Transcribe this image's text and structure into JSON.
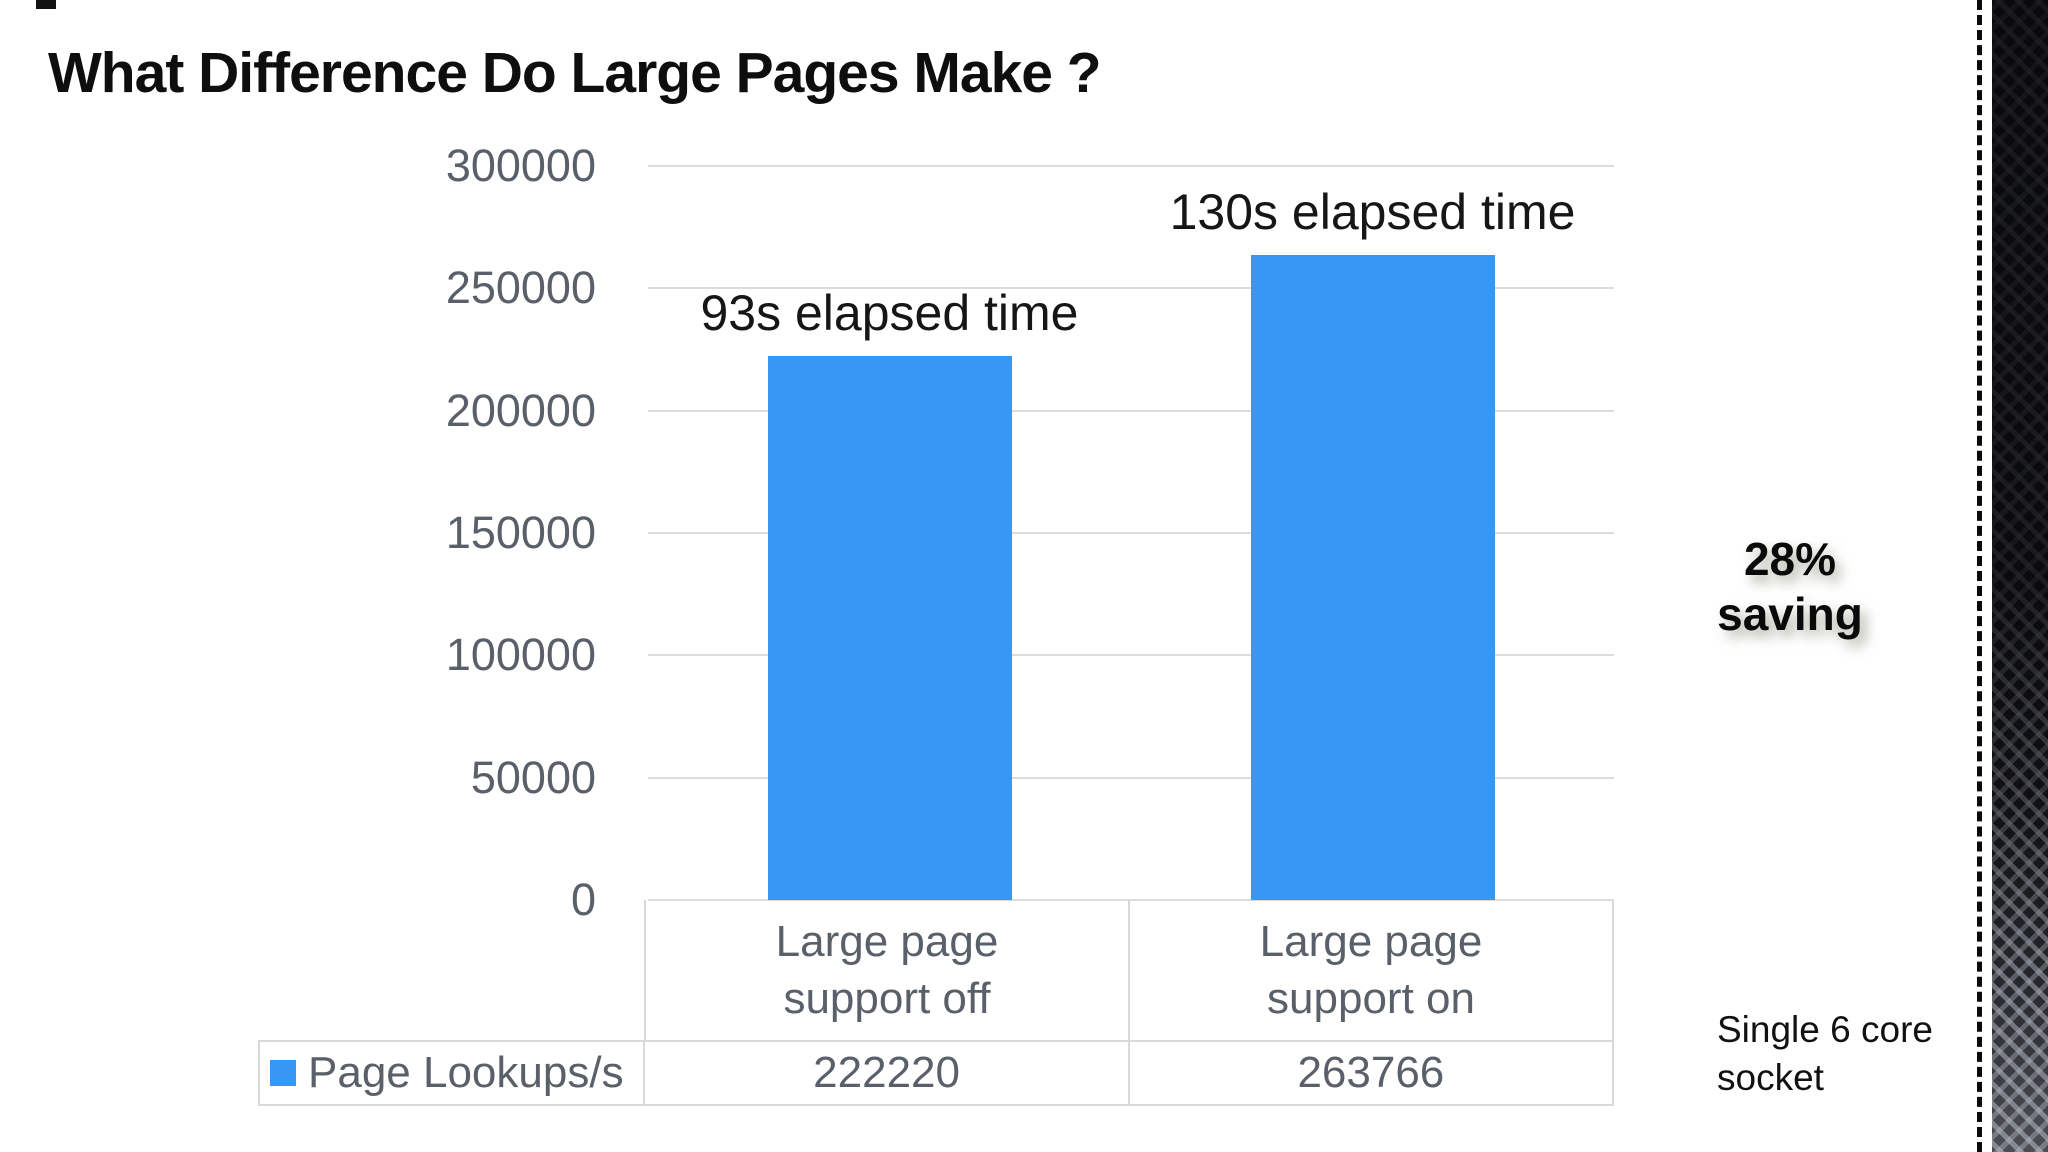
{
  "slide": {
    "title": "What Difference Do Large Pages Make ?",
    "footnote": "Single 6 core socket"
  },
  "badge": {
    "lines": [
      "28%",
      "saving"
    ],
    "color_dark_gold": "#94820a",
    "color_bright_yellow": "#fbf100"
  },
  "chart_data": {
    "type": "bar",
    "title": "",
    "xlabel": "",
    "ylabel": "",
    "categories": [
      "Large page support off",
      "Large page support on"
    ],
    "series": [
      {
        "name": "Page Lookups/s",
        "values": [
          222220,
          263766
        ]
      }
    ],
    "bar_labels": [
      "93s elapsed time",
      "130s elapsed time"
    ],
    "ylim": [
      0,
      300000
    ],
    "yticks": [
      0,
      50000,
      100000,
      150000,
      200000,
      250000,
      300000
    ],
    "grid": true,
    "legend_position": "bottom-data-table",
    "data_table": true,
    "bar_color": "#3697f4",
    "axis_text_color": "#5a6069",
    "gridline_color": "#dcdcdc"
  }
}
